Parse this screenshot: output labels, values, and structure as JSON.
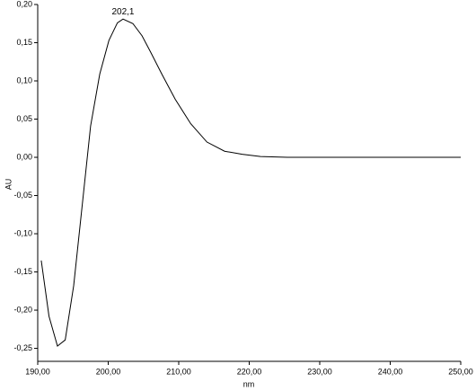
{
  "chart_data": {
    "type": "line",
    "x_label": "nm",
    "y_label": "AU",
    "x": [
      190.5,
      191.6,
      192.8,
      193.9,
      195.1,
      196.4,
      197.5,
      198.8,
      200.1,
      201.3,
      202.1,
      203.5,
      204.8,
      206.0,
      207.6,
      209.5,
      211.7,
      214.0,
      216.5,
      219.0,
      221.6,
      225.4,
      230.0,
      240.0,
      250.0
    ],
    "series": [
      {
        "color": "#000000",
        "values": [
          -0.135,
          -0.208,
          -0.247,
          -0.239,
          -0.168,
          -0.055,
          0.041,
          0.109,
          0.153,
          0.176,
          0.181,
          0.175,
          0.159,
          0.138,
          0.109,
          0.076,
          0.044,
          0.02,
          0.008,
          0.004,
          0.001,
          0.0,
          0.0,
          0.0,
          0.0
        ]
      }
    ],
    "annotations": [
      {
        "value": 202.1,
        "label": "202,1"
      }
    ],
    "xlim": [
      190,
      250
    ],
    "xticks": [
      {
        "value": 190,
        "label": "190,00"
      },
      {
        "value": 200,
        "label": "200,00"
      },
      {
        "value": 210,
        "label": "210,00"
      },
      {
        "value": 220,
        "label": "220,00"
      },
      {
        "value": 230,
        "label": "230,00"
      },
      {
        "value": 240,
        "label": "240,00"
      },
      {
        "value": 250,
        "label": "250,00"
      }
    ],
    "ylim": [
      -0.267,
      0.2
    ],
    "yticks": [
      {
        "value": -0.25,
        "label": "-0,25"
      },
      {
        "value": -0.2,
        "label": "-0,20"
      },
      {
        "value": -0.15,
        "label": "-0,15"
      },
      {
        "value": -0.1,
        "label": "-0,10"
      },
      {
        "value": -0.05,
        "label": "-0,05"
      },
      {
        "value": 0,
        "label": "0,00"
      },
      {
        "value": 0.05,
        "label": "0,05"
      },
      {
        "value": 0.1,
        "label": "0,10"
      },
      {
        "value": 0.15,
        "label": "0,15"
      },
      {
        "value": 0.2,
        "label": "0,20"
      }
    ]
  }
}
